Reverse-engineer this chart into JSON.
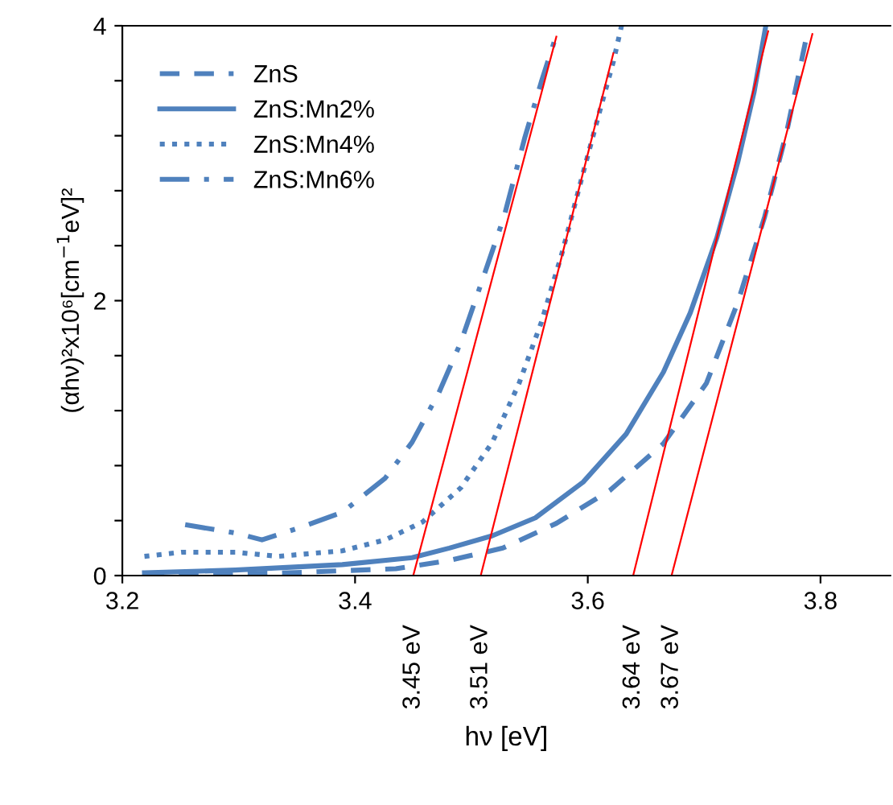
{
  "chart_data": {
    "type": "line",
    "xlabel": "hν [eV]",
    "ylabel": "(αhν)²x10⁶[cm$^{−1}$eV]²",
    "xlim": [
      3.2,
      3.86
    ],
    "ylim": [
      0,
      4
    ],
    "xticks": [
      3.2,
      3.4,
      3.6,
      3.8
    ],
    "yticks": [
      0,
      {
        "value": 0.4,
        "label": null
      },
      {
        "value": 0.8,
        "label": null
      },
      {
        "value": 1.2,
        "label": null
      },
      {
        "value": 1.6,
        "label": null
      },
      2,
      {
        "value": 2.4,
        "label": null
      },
      {
        "value": 2.8,
        "label": null
      },
      {
        "value": 3.2,
        "label": null
      },
      {
        "value": 3.6,
        "label": null
      },
      4
    ],
    "grid": false,
    "legend": "top left",
    "marker": "none",
    "series": [
      {
        "name": "ZnS",
        "color": "#4f81bd",
        "line_style": "dashed",
        "x": [
          3.219,
          3.343,
          3.435,
          3.481,
          3.527,
          3.573,
          3.619,
          3.665,
          3.702,
          3.729,
          3.752,
          3.771,
          3.787
        ],
        "values": [
          0.0,
          0.02,
          0.05,
          0.11,
          0.2,
          0.38,
          0.62,
          0.96,
          1.4,
          1.99,
          2.61,
          3.23,
          3.88
        ]
      },
      {
        "name": "ZnS:Mn2%",
        "color": "#4f81bd",
        "line_style": "solid",
        "x": [
          3.219,
          3.297,
          3.389,
          3.449,
          3.481,
          3.518,
          3.555,
          3.596,
          3.633,
          3.665,
          3.688,
          3.711,
          3.729,
          3.743,
          3.753
        ],
        "values": [
          0.02,
          0.04,
          0.08,
          0.13,
          0.2,
          0.29,
          0.42,
          0.68,
          1.03,
          1.48,
          1.91,
          2.46,
          3.01,
          3.52,
          4.0
        ]
      },
      {
        "name": "ZnS:Mn4%",
        "color": "#4f81bd",
        "line_style": "dotted",
        "x": [
          3.219,
          3.251,
          3.297,
          3.334,
          3.389,
          3.426,
          3.458,
          3.491,
          3.518,
          3.541,
          3.56,
          3.578,
          3.596,
          3.61,
          3.622,
          3.629
        ],
        "values": [
          0.14,
          0.17,
          0.17,
          0.14,
          0.18,
          0.26,
          0.39,
          0.64,
          0.97,
          1.4,
          1.84,
          2.35,
          2.93,
          3.37,
          3.74,
          4.0
        ]
      },
      {
        "name": "ZnS:Mn6%",
        "color": "#4f81bd",
        "line_style": "dashdot",
        "x": [
          3.254,
          3.297,
          3.32,
          3.353,
          3.389,
          3.426,
          3.449,
          3.472,
          3.491,
          3.509,
          3.528,
          3.546,
          3.56,
          3.571
        ],
        "values": [
          0.37,
          0.31,
          0.26,
          0.35,
          0.46,
          0.71,
          0.97,
          1.33,
          1.7,
          2.14,
          2.61,
          3.19,
          3.59,
          3.88
        ]
      },
      {
        "color": "#ff0000",
        "line_style": "solid",
        "x": [
          3.45,
          3.573
        ],
        "values": [
          0,
          3.92
        ]
      },
      {
        "color": "#ff0000",
        "line_style": "solid",
        "x": [
          3.508,
          3.622
        ],
        "values": [
          0,
          3.8
        ]
      },
      {
        "color": "#ff0000",
        "line_style": "solid",
        "x": [
          3.639,
          3.755
        ],
        "values": [
          0,
          3.96
        ]
      },
      {
        "color": "#ff0000",
        "line_style": "solid",
        "x": [
          3.672,
          3.793
        ],
        "values": [
          0,
          3.94
        ]
      }
    ],
    "annotations": [
      {
        "text": "3.45 eV",
        "x": 3.45,
        "y": 0
      },
      {
        "text": "3.51 eV",
        "x": 3.508,
        "y": 0
      },
      {
        "text": "3.64 eV",
        "x": 3.639,
        "y": 0
      },
      {
        "text": "3.67 eV",
        "x": 3.672,
        "y": 0
      }
    ]
  }
}
